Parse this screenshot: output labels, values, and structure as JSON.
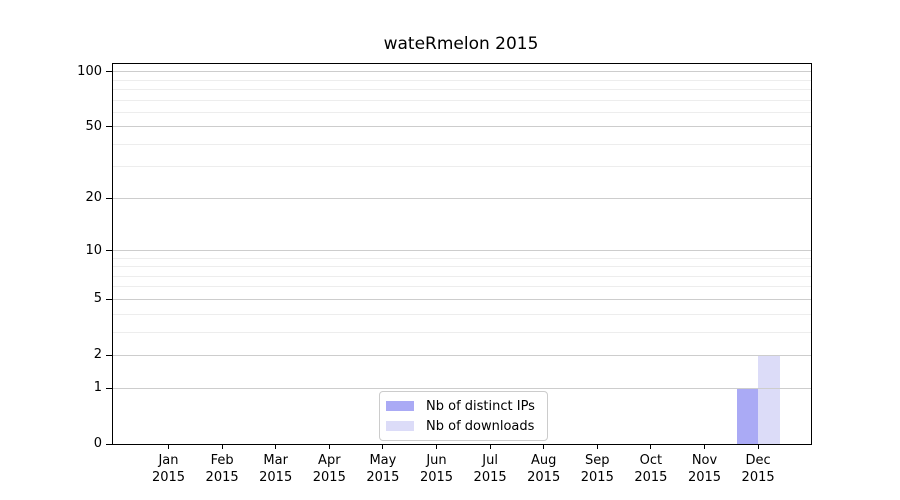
{
  "chart_data": {
    "type": "bar",
    "title": "wateRmelon 2015",
    "x_categories": [
      "Jan",
      "Feb",
      "Mar",
      "Apr",
      "May",
      "Jun",
      "Jul",
      "Aug",
      "Sep",
      "Oct",
      "Nov",
      "Dec"
    ],
    "x_year_label": "2015",
    "series": [
      {
        "name": "Nb of distinct IPs",
        "color": "#aaaaf5",
        "values": [
          0,
          0,
          0,
          0,
          0,
          0,
          0,
          0,
          0,
          0,
          0,
          1
        ]
      },
      {
        "name": "Nb of downloads",
        "color": "#dcdcf8",
        "values": [
          0,
          0,
          0,
          0,
          0,
          0,
          0,
          0,
          0,
          0,
          0,
          2
        ]
      }
    ],
    "y_axis": {
      "scale": "log1p",
      "ylim": [
        0,
        110
      ],
      "major_ticks": [
        0,
        1,
        2,
        5,
        10,
        20,
        50,
        100
      ],
      "minor_gridlines": [
        3,
        4,
        6,
        7,
        8,
        9,
        30,
        40,
        60,
        70,
        80,
        90
      ]
    },
    "grid": true,
    "legend_position": "lower center",
    "colors": {
      "grid_major": "#cdcdcd",
      "grid_minor": "#ededed",
      "axis": "#000000",
      "background": "#ffffff"
    }
  }
}
